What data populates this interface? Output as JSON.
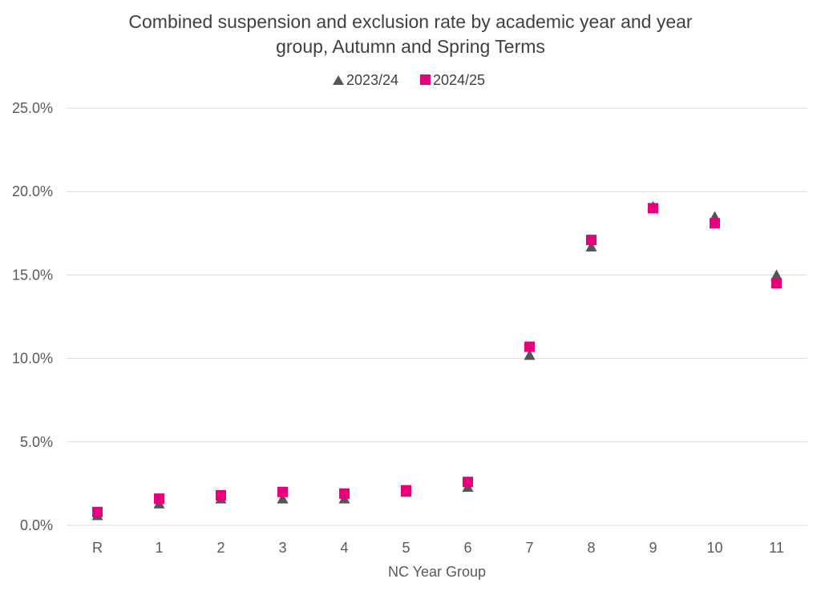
{
  "chart_data": {
    "type": "scatter",
    "title_lines": [
      "Combined suspension and exclusion rate by academic year and year",
      "group, Autumn and Spring Terms"
    ],
    "xlabel": "NC Year Group",
    "ylabel": "",
    "categories": [
      "R",
      "1",
      "2",
      "3",
      "4",
      "5",
      "6",
      "7",
      "8",
      "9",
      "10",
      "11"
    ],
    "yticks": [
      "0.0%",
      "5.0%",
      "10.0%",
      "15.0%",
      "20.0%",
      "25.0%"
    ],
    "ylim": [
      0,
      25
    ],
    "grid": true,
    "legend_position": "top",
    "series": [
      {
        "name": "2023/24",
        "marker": "triangle",
        "color": "#555555",
        "values": [
          0.6,
          1.3,
          1.6,
          1.6,
          1.6,
          2.0,
          2.3,
          10.2,
          16.7,
          19.1,
          18.5,
          15.0
        ]
      },
      {
        "name": "2024/25",
        "marker": "square",
        "color": "#E6007E",
        "values": [
          0.8,
          1.6,
          1.8,
          2.0,
          1.9,
          2.1,
          2.6,
          10.7,
          17.1,
          19.0,
          18.1,
          14.5
        ]
      }
    ]
  }
}
